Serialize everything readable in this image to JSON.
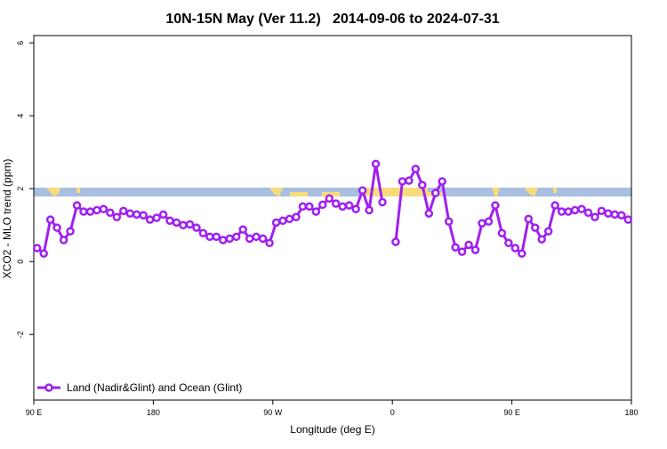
{
  "chart_data": {
    "type": "line",
    "title": "10N-15N May (Ver 11.2)   2014-09-06 to 2024-07-31",
    "xlabel": "Longitude (deg E)",
    "ylabel": "XCO2 - MLO trend (ppm)",
    "x": [
      92.5,
      97.5,
      102.5,
      107.5,
      112.5,
      117.5,
      122.5,
      127.5,
      132.5,
      137.5,
      142.5,
      147.5,
      152.5,
      157.5,
      162.5,
      167.5,
      172.5,
      177.5,
      182.5,
      187.5,
      192.5,
      197.5,
      202.5,
      207.5,
      212.5,
      217.5,
      222.5,
      227.5,
      232.5,
      237.5,
      242.5,
      247.5,
      252.5,
      257.5,
      262.5,
      267.5,
      272.5,
      277.5,
      282.5,
      287.5,
      292.5,
      297.5,
      302.5,
      307.5,
      312.5,
      317.5,
      322.5,
      327.5,
      332.5,
      337.5,
      342.5,
      347.5,
      352.5,
      357.5,
      362.5,
      367.5,
      372.5,
      377.5,
      382.5,
      387.5,
      392.5,
      397.5,
      402.5,
      407.5,
      412.5,
      417.5,
      422.5,
      427.5,
      432.5,
      437.5,
      442.5,
      447.5,
      452.5,
      457.5,
      462.5,
      467.5,
      472.5,
      477.5,
      482.5,
      487.5,
      492.5,
      497.5,
      502.5,
      507.5,
      512.5,
      517.5,
      522.5,
      527.5,
      532.5,
      537.5
    ],
    "series": [
      {
        "name": "Land (Nadir&Glint) and Ocean (Glint)",
        "color": "#a020f0",
        "values": [
          0.37,
          0.22,
          1.15,
          0.93,
          0.59,
          0.83,
          1.54,
          1.37,
          1.37,
          1.41,
          1.44,
          1.34,
          1.22,
          1.39,
          1.32,
          1.29,
          1.27,
          1.15,
          1.2,
          1.29,
          1.12,
          1.07,
          1.0,
          1.02,
          0.93,
          0.78,
          0.68,
          0.68,
          0.59,
          0.63,
          0.68,
          0.88,
          0.63,
          0.68,
          0.63,
          0.51,
          1.07,
          1.12,
          1.17,
          1.22,
          1.51,
          1.51,
          1.37,
          1.56,
          1.73,
          1.59,
          1.51,
          1.54,
          1.44,
          1.95,
          1.41,
          2.68,
          1.63,
          null,
          0.54,
          2.2,
          2.22,
          2.54,
          2.1,
          1.32,
          1.88,
          2.2,
          1.1,
          0.39,
          0.27,
          0.46,
          0.32,
          1.05,
          1.1,
          1.54,
          0.78,
          0.51,
          0.37,
          0.22,
          1.17,
          0.93,
          0.61,
          0.83,
          1.54,
          1.37,
          1.37,
          1.41,
          1.44,
          1.34,
          1.22,
          1.39,
          1.32,
          1.29,
          1.27,
          1.15
        ]
      }
    ],
    "xlim": [
      90,
      540
    ],
    "xticks": [
      {
        "value": 90,
        "label": "90 E"
      },
      {
        "value": 180,
        "label": "180"
      },
      {
        "value": 270,
        "label": "90 W"
      },
      {
        "value": 360,
        "label": "0"
      },
      {
        "value": 450,
        "label": "90 E"
      },
      {
        "value": 540,
        "label": "180"
      }
    ],
    "ylim": [
      -3.8,
      6.2
    ],
    "yticks": [
      -2,
      0,
      2,
      4,
      6
    ],
    "legend": "bottom-left"
  }
}
